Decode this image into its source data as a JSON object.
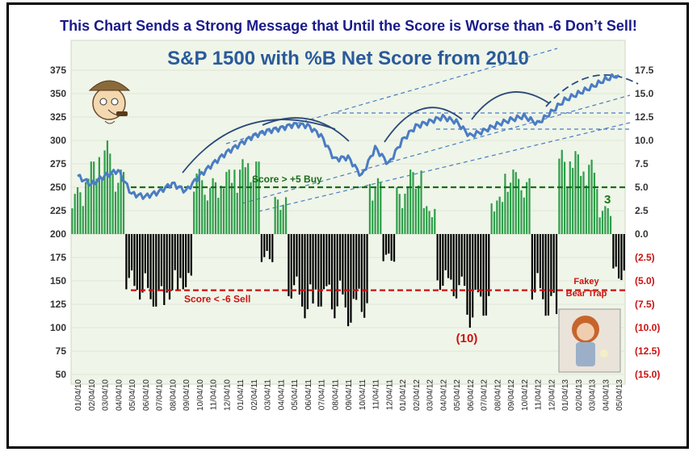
{
  "headline": "This Chart Sends a Strong Message that Until the Score is Worse than -6 Don’t Sell!",
  "chart_data": {
    "type": "bar",
    "title": "S&P 1500 with %B Net Score from 2010",
    "left_axis": {
      "ticks": [
        "375",
        "350",
        "325",
        "300",
        "275",
        "250",
        "225",
        "200",
        "175",
        "150",
        "125",
        "100",
        "75",
        "50"
      ],
      "ylim": [
        50,
        375
      ]
    },
    "right_axis": {
      "ticks": [
        "17.5",
        "15.0",
        "12.5",
        "10.0",
        "7.5",
        "5.0",
        "2.5",
        "0.0",
        "(2.5)",
        "(5.0)",
        "(7.5)",
        "(10.0)",
        "(12.5)",
        "(15.0)"
      ],
      "ylim": [
        -15,
        17.5
      ]
    },
    "x_tick_labels": [
      "01/04/10",
      "02/04/10",
      "03/04/10",
      "04/04/10",
      "05/04/10",
      "06/04/10",
      "07/04/10",
      "08/04/10",
      "09/04/10",
      "10/04/10",
      "11/04/10",
      "12/04/10",
      "01/04/11",
      "02/04/11",
      "03/04/11",
      "04/04/11",
      "05/04/11",
      "06/04/11",
      "07/04/11",
      "08/04/11",
      "09/04/11",
      "10/04/11",
      "11/04/11",
      "12/04/11",
      "01/04/12",
      "02/04/12",
      "03/04/12",
      "04/04/12",
      "05/04/12",
      "06/04/12",
      "07/04/12",
      "08/04/12",
      "09/04/12",
      "10/04/12",
      "11/04/12",
      "12/04/12",
      "01/04/13",
      "02/04/13",
      "03/04/13",
      "04/04/13",
      "05/04/13"
    ],
    "price_series_monthly": [
      262,
      253,
      262,
      268,
      243,
      240,
      245,
      254,
      246,
      262,
      275,
      287,
      296,
      305,
      310,
      313,
      317,
      316,
      305,
      280,
      282,
      262,
      292,
      275,
      300,
      315,
      320,
      325,
      320,
      305,
      310,
      317,
      322,
      326,
      318,
      330,
      343,
      350,
      357,
      365,
      370
    ],
    "score_series_monthly": [
      5,
      8,
      10,
      7,
      -6,
      -7,
      -8,
      -7,
      -6,
      7,
      6,
      7,
      8,
      8,
      -3,
      4,
      -7,
      -9,
      -8,
      -9,
      -10,
      -9,
      6,
      -3,
      5,
      7,
      3,
      -6,
      -7,
      -10,
      -9,
      4,
      7,
      6,
      -7,
      -9,
      9,
      9,
      8,
      3,
      -5
    ],
    "reference_lines": [
      {
        "label": "Score > +5 Buy",
        "value": 5.0,
        "color": "#1a6b1a"
      },
      {
        "label": "Score < -6 Sell",
        "value": -6.0,
        "color": "#cc1111"
      }
    ],
    "annotations": [
      {
        "text": "3",
        "color": "#1a7a1a"
      },
      {
        "text": "(10)",
        "color": "#cc1111"
      },
      {
        "text": "Fakey",
        "color": "#cc1111"
      },
      {
        "text": "Bear Trap",
        "color": "#cc1111"
      }
    ],
    "colors": {
      "positive": "#2e9e4a",
      "negative": "#000000",
      "price": "#4a7cc4",
      "title": "#2a5a9a",
      "right_axis_negative": "#cc1111",
      "plot_bg": "#eff5e8"
    }
  }
}
